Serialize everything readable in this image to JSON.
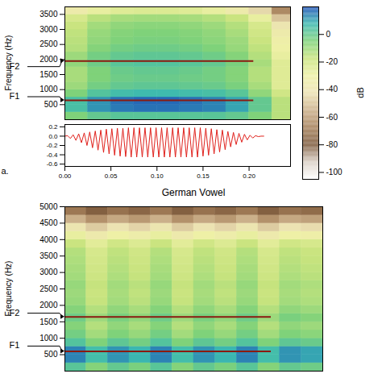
{
  "chart_data": [
    {
      "type": "heatmap",
      "y_label": "Frequency (Hz)",
      "xlim": [
        0,
        0.245
      ],
      "ylim": [
        0,
        3750
      ],
      "yticks": [
        500,
        1000,
        1500,
        2000,
        2500,
        3000,
        3500
      ],
      "tick_labels": "y",
      "time_edges": [
        0,
        0.025,
        0.05,
        0.075,
        0.1,
        0.125,
        0.15,
        0.175,
        0.2,
        0.225,
        0.25
      ],
      "frequency_edges": [
        0,
        250,
        500,
        750,
        1000,
        1250,
        1500,
        1750,
        2000,
        2250,
        2500,
        2750,
        3000,
        3250,
        3500,
        3750
      ],
      "cells": [
        [
          -5,
          0,
          2,
          2,
          2,
          2,
          2,
          0,
          -5,
          -15
        ],
        [
          5,
          12,
          15,
          16,
          16,
          15,
          14,
          10,
          0,
          -15
        ],
        [
          5,
          12,
          16,
          17,
          17,
          16,
          14,
          10,
          0,
          -15
        ],
        [
          -5,
          3,
          6,
          7,
          7,
          6,
          5,
          2,
          -8,
          -20
        ],
        [
          -10,
          -3,
          0,
          1,
          1,
          0,
          -1,
          -4,
          -12,
          -25
        ],
        [
          -12,
          -5,
          -2,
          -1,
          -1,
          -2,
          -3,
          -6,
          -14,
          -25
        ],
        [
          -12,
          -5,
          -1,
          0,
          0,
          -1,
          -3,
          -6,
          -14,
          -25
        ],
        [
          -8,
          -2,
          2,
          3,
          3,
          2,
          0,
          -4,
          -12,
          -25
        ],
        [
          -10,
          -3,
          0,
          1,
          1,
          0,
          -2,
          -6,
          -14,
          -28
        ],
        [
          -14,
          -6,
          -3,
          -2,
          -2,
          -3,
          -5,
          -9,
          -16,
          -30
        ],
        [
          -15,
          -8,
          -5,
          -4,
          -4,
          -5,
          -7,
          -10,
          -18,
          -32
        ],
        [
          -16,
          -9,
          -6,
          -5,
          -5,
          -6,
          -8,
          -12,
          -20,
          -35
        ],
        [
          -18,
          -11,
          -8,
          -7,
          -7,
          -8,
          -10,
          -14,
          -22,
          -40
        ],
        [
          -22,
          -15,
          -12,
          -11,
          -11,
          -12,
          -14,
          -18,
          -28,
          -50
        ],
        [
          -35,
          -28,
          -25,
          -24,
          -24,
          -25,
          -28,
          -35,
          -45,
          -65
        ]
      ],
      "formants": [
        {
          "name": "F2",
          "value": 1950,
          "time": [
            0,
            0.205
          ],
          "color": "#8b1a10"
        },
        {
          "name": "F1",
          "value": 640,
          "time": [
            0,
            0.205
          ],
          "color": "#8b1a10"
        }
      ],
      "colorbar": {
        "label": "dB",
        "range": [
          -105,
          20
        ],
        "ticks": [
          0,
          -20,
          -40,
          -60,
          -80,
          -100
        ]
      }
    },
    {
      "type": "line",
      "panel": "a.",
      "color": "#e0201b",
      "xlim": [
        0,
        0.245
      ],
      "ylim": [
        -0.65,
        0.25
      ],
      "xticks": [
        {
          "value": 0,
          "label": "0.00"
        },
        {
          "value": 0.05,
          "label": "0.05"
        },
        {
          "value": 0.1,
          "label": "0.10"
        },
        {
          "value": 0.15,
          "label": "0.15"
        },
        {
          "value": 0.2,
          "label": "0.20"
        }
      ],
      "yticks": [
        0.2,
        {
          "value": 0,
          "label": "0.0"
        },
        -0.2,
        -0.4,
        -0.6
      ],
      "x": [
        0,
        0.003,
        0.006,
        0.009,
        0.012,
        0.015,
        0.018,
        0.021,
        0.024,
        0.027,
        0.03,
        0.033,
        0.036,
        0.039,
        0.042,
        0.045,
        0.048,
        0.051,
        0.054,
        0.057,
        0.06,
        0.063,
        0.066,
        0.069,
        0.072,
        0.075,
        0.078,
        0.081,
        0.084,
        0.087,
        0.09,
        0.093,
        0.096,
        0.099,
        0.102,
        0.105,
        0.108,
        0.111,
        0.114,
        0.117,
        0.12,
        0.123,
        0.126,
        0.129,
        0.132,
        0.135,
        0.138,
        0.141,
        0.144,
        0.147,
        0.15,
        0.153,
        0.156,
        0.159,
        0.162,
        0.165,
        0.168,
        0.171,
        0.174,
        0.177,
        0.18,
        0.183,
        0.186,
        0.189,
        0.192,
        0.195,
        0.198,
        0.201,
        0.204,
        0.207,
        0.21,
        0.213,
        0.216
      ],
      "values": [
        0,
        0.01,
        -0.05,
        0.03,
        -0.09,
        0.05,
        -0.14,
        0.07,
        -0.2,
        0.09,
        -0.25,
        0.11,
        -0.3,
        0.13,
        -0.35,
        0.15,
        -0.38,
        0.16,
        -0.41,
        0.17,
        -0.43,
        0.17,
        -0.44,
        0.18,
        -0.45,
        0.18,
        -0.45,
        0.18,
        -0.45,
        0.18,
        -0.45,
        0.18,
        -0.45,
        0.18,
        -0.45,
        0.18,
        -0.45,
        0.18,
        -0.45,
        0.18,
        -0.45,
        0.18,
        -0.45,
        0.18,
        -0.45,
        0.18,
        -0.45,
        0.18,
        -0.45,
        0.18,
        -0.43,
        0.17,
        -0.41,
        0.16,
        -0.38,
        0.14,
        -0.34,
        0.13,
        -0.29,
        0.1,
        -0.23,
        0.08,
        -0.18,
        0.06,
        -0.13,
        0.04,
        -0.08,
        0.02,
        -0.04,
        0.01,
        -0.01,
        0,
        0
      ]
    },
    {
      "type": "heatmap",
      "title": "German Vowel",
      "y_label": "Frequency (Hz)",
      "xlim": [
        0,
        0.3
      ],
      "ylim": [
        0,
        5000
      ],
      "yticks": [
        500,
        1000,
        1500,
        2000,
        2500,
        3000,
        3500,
        4000,
        4500,
        5000
      ],
      "tick_labels": "y",
      "time_edges": [
        0,
        0.025,
        0.05,
        0.075,
        0.1,
        0.125,
        0.15,
        0.175,
        0.2,
        0.225,
        0.25,
        0.275,
        0.3
      ],
      "frequency_edges": [
        0,
        250,
        500,
        750,
        1000,
        1250,
        1500,
        1750,
        2000,
        2250,
        2500,
        2750,
        3000,
        3250,
        3500,
        3750,
        4000,
        4250,
        4500,
        4750,
        5000
      ],
      "cells": [
        [
          2,
          -6,
          0,
          -4,
          2,
          -6,
          0,
          -4,
          2,
          -6,
          0,
          -2
        ],
        [
          14,
          6,
          12,
          8,
          14,
          6,
          12,
          8,
          14,
          6,
          12,
          10
        ],
        [
          14,
          6,
          12,
          8,
          14,
          6,
          12,
          8,
          14,
          6,
          12,
          10
        ],
        [
          3,
          -5,
          1,
          -3,
          3,
          -5,
          1,
          -3,
          3,
          -5,
          1,
          -1
        ],
        [
          -3,
          -11,
          -5,
          -9,
          -3,
          -11,
          -5,
          -9,
          -3,
          -11,
          -5,
          -7
        ],
        [
          -6,
          -14,
          -8,
          -12,
          -6,
          -14,
          -8,
          -12,
          -6,
          -14,
          -8,
          -10
        ],
        [
          -2,
          -10,
          -4,
          -8,
          -2,
          -10,
          -4,
          -8,
          -2,
          -10,
          -4,
          -6
        ],
        [
          -6,
          -14,
          -8,
          -12,
          -6,
          -14,
          -8,
          -12,
          -6,
          -14,
          -8,
          -10
        ],
        [
          -9,
          -17,
          -11,
          -15,
          -9,
          -17,
          -11,
          -15,
          -9,
          -17,
          -11,
          -13
        ],
        [
          -10,
          -18,
          -12,
          -16,
          -10,
          -18,
          -12,
          -16,
          -10,
          -18,
          -12,
          -14
        ],
        [
          -9,
          -17,
          -11,
          -15,
          -9,
          -17,
          -11,
          -15,
          -9,
          -17,
          -11,
          -13
        ],
        [
          -11,
          -19,
          -13,
          -17,
          -11,
          -19,
          -13,
          -17,
          -11,
          -19,
          -13,
          -15
        ],
        [
          -12,
          -20,
          -14,
          -18,
          -12,
          -20,
          -14,
          -18,
          -12,
          -20,
          -14,
          -16
        ],
        [
          -13,
          -21,
          -15,
          -19,
          -13,
          -21,
          -15,
          -19,
          -13,
          -21,
          -15,
          -17
        ],
        [
          -14,
          -22,
          -16,
          -20,
          -14,
          -22,
          -16,
          -20,
          -14,
          -22,
          -16,
          -18
        ],
        [
          -18,
          -26,
          -20,
          -24,
          -18,
          -26,
          -20,
          -24,
          -18,
          -26,
          -20,
          -22
        ],
        [
          -28,
          -36,
          -30,
          -34,
          -28,
          -36,
          -30,
          -34,
          -28,
          -36,
          -30,
          -32
        ],
        [
          -40,
          -48,
          -42,
          -46,
          -40,
          -48,
          -42,
          -46,
          -40,
          -48,
          -42,
          -44
        ],
        [
          -55,
          -63,
          -57,
          -61,
          -55,
          -63,
          -57,
          -61,
          -55,
          -63,
          -57,
          -59
        ],
        [
          -70,
          -78,
          -72,
          -76,
          -70,
          -78,
          -72,
          -76,
          -70,
          -78,
          -72,
          -74
        ]
      ],
      "formants": [
        {
          "name": "F2",
          "value": 1650,
          "time": [
            0,
            0.24
          ],
          "color": "#8b1a10"
        },
        {
          "name": "F1",
          "value": 600,
          "time": [
            0,
            0.24
          ],
          "color": "#8b1a10"
        }
      ]
    }
  ]
}
